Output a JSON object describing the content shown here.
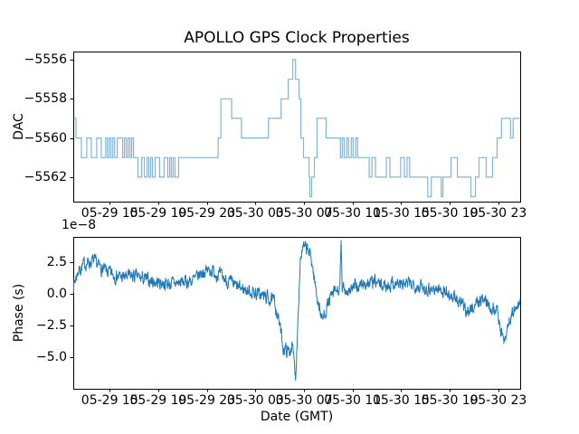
{
  "figure": {
    "title": "APOLLO GPS Clock Properties",
    "background": "#ffffff",
    "accent_color": "#1f77b4"
  },
  "chart_data": [
    {
      "type": "line",
      "subplot": "top",
      "style": "step-post",
      "ylabel": "DAC",
      "color": "#1f77b4",
      "line_alpha": 0.55,
      "grid": false,
      "legend": "none",
      "x_unit": "hours since 05-29 12:00 GMT",
      "xlim_hours": [
        0,
        36.8
      ],
      "ylim": [
        -5563.3,
        -5555.6
      ],
      "x_tick_hours": [
        3,
        7,
        11,
        15,
        19,
        23,
        27,
        31,
        35
      ],
      "x_tick_labels": [
        "05-29 15",
        "05-29 19",
        "05-29 23",
        "05-30 03",
        "05-30 07",
        "05-30 11",
        "05-30 15",
        "05-30 19",
        "05-30 23"
      ],
      "y_tick_values": [
        -5556,
        -5558,
        -5560,
        -5562
      ],
      "y_tick_labels": [
        "−5556",
        "−5558",
        "−5560",
        "−5562"
      ],
      "series": [
        {
          "name": "dac-steps",
          "points_hour_value": [
            [
              0.0,
              -5559
            ],
            [
              0.22,
              -5560
            ],
            [
              0.67,
              -5561
            ],
            [
              1.11,
              -5560
            ],
            [
              1.48,
              -5561
            ],
            [
              1.93,
              -5560
            ],
            [
              2.3,
              -5561
            ],
            [
              2.67,
              -5560
            ],
            [
              2.81,
              -5561
            ],
            [
              2.96,
              -5560
            ],
            [
              3.11,
              -5561
            ],
            [
              3.26,
              -5560
            ],
            [
              3.41,
              -5561
            ],
            [
              3.63,
              -5560
            ],
            [
              4.07,
              -5561
            ],
            [
              4.22,
              -5560
            ],
            [
              4.37,
              -5561
            ],
            [
              4.52,
              -5560
            ],
            [
              4.67,
              -5561
            ],
            [
              4.81,
              -5560
            ],
            [
              4.96,
              -5561
            ],
            [
              5.33,
              -5562
            ],
            [
              5.63,
              -5561
            ],
            [
              5.85,
              -5562
            ],
            [
              6.07,
              -5561
            ],
            [
              6.22,
              -5562
            ],
            [
              6.37,
              -5561
            ],
            [
              6.52,
              -5562
            ],
            [
              6.74,
              -5561
            ],
            [
              7.11,
              -5562
            ],
            [
              7.48,
              -5561
            ],
            [
              7.78,
              -5562
            ],
            [
              7.93,
              -5561
            ],
            [
              8.07,
              -5562
            ],
            [
              8.22,
              -5561
            ],
            [
              8.37,
              -5562
            ],
            [
              8.67,
              -5561
            ],
            [
              11.93,
              -5560
            ],
            [
              12.15,
              -5558
            ],
            [
              13.04,
              -5559
            ],
            [
              13.85,
              -5560
            ],
            [
              16.07,
              -5559
            ],
            [
              17.11,
              -5558
            ],
            [
              17.7,
              -5557
            ],
            [
              18.07,
              -5556
            ],
            [
              18.3,
              -5557
            ],
            [
              18.59,
              -5558
            ],
            [
              18.74,
              -5560
            ],
            [
              18.96,
              -5561
            ],
            [
              19.41,
              -5562
            ],
            [
              19.48,
              -5563
            ],
            [
              19.63,
              -5562
            ],
            [
              19.85,
              -5561
            ],
            [
              20.07,
              -5559
            ],
            [
              20.81,
              -5560
            ],
            [
              22.0,
              -5561
            ],
            [
              22.15,
              -5560
            ],
            [
              22.3,
              -5561
            ],
            [
              22.52,
              -5560
            ],
            [
              22.67,
              -5561
            ],
            [
              22.89,
              -5560
            ],
            [
              23.04,
              -5561
            ],
            [
              23.26,
              -5560
            ],
            [
              23.41,
              -5561
            ],
            [
              24.37,
              -5562
            ],
            [
              24.59,
              -5561
            ],
            [
              24.89,
              -5562
            ],
            [
              25.78,
              -5561
            ],
            [
              26.07,
              -5562
            ],
            [
              26.96,
              -5561
            ],
            [
              27.26,
              -5562
            ],
            [
              27.48,
              -5561
            ],
            [
              27.7,
              -5562
            ],
            [
              29.19,
              -5563
            ],
            [
              29.48,
              -5562
            ],
            [
              30.3,
              -5563
            ],
            [
              30.44,
              -5562
            ],
            [
              31.11,
              -5561
            ],
            [
              31.63,
              -5562
            ],
            [
              32.74,
              -5563
            ],
            [
              33.11,
              -5562
            ],
            [
              33.41,
              -5561
            ],
            [
              34.0,
              -5562
            ],
            [
              34.52,
              -5561
            ],
            [
              34.89,
              -5560
            ],
            [
              35.26,
              -5559
            ],
            [
              36.0,
              -5560
            ],
            [
              36.22,
              -5559
            ],
            [
              36.8,
              -5559
            ]
          ]
        }
      ]
    },
    {
      "type": "line",
      "subplot": "bottom",
      "style": "noisy-line",
      "ylabel": "Phase (s)",
      "xlabel": "Date (GMT)",
      "offset_text": "1e−8",
      "color": "#1f77b4",
      "grid": false,
      "legend": "none",
      "x_unit": "hours since 05-29 12:00 GMT",
      "xlim_hours": [
        0,
        36.8
      ],
      "ylim_1e8": [
        -7.5,
        4.5
      ],
      "x_tick_hours": [
        3,
        7,
        11,
        15,
        19,
        23,
        27,
        31,
        35
      ],
      "x_tick_labels": [
        "05-29 15",
        "05-29 19",
        "05-29 23",
        "05-30 03",
        "05-30 07",
        "05-30 11",
        "05-30 15",
        "05-30 19",
        "05-30 23"
      ],
      "y_tick_values": [
        2.5,
        0.0,
        -2.5,
        -5.0
      ],
      "y_tick_labels": [
        "2.5",
        "0.0",
        "−2.5",
        "−5.0"
      ],
      "trend_keypoints_hour_value_1e8": [
        [
          0.0,
          0.6
        ],
        [
          0.4,
          1.8
        ],
        [
          1.0,
          2.4
        ],
        [
          1.6,
          2.6
        ],
        [
          2.2,
          2.1
        ],
        [
          3.0,
          1.6
        ],
        [
          4.0,
          1.3
        ],
        [
          5.0,
          1.4
        ],
        [
          6.0,
          1.1
        ],
        [
          7.0,
          0.9
        ],
        [
          8.0,
          0.8
        ],
        [
          9.0,
          0.9
        ],
        [
          10.0,
          1.1
        ],
        [
          10.6,
          1.7
        ],
        [
          11.3,
          1.9
        ],
        [
          12.0,
          1.5
        ],
        [
          12.7,
          1.0
        ],
        [
          13.5,
          0.5
        ],
        [
          14.3,
          0.3
        ],
        [
          15.2,
          0.0
        ],
        [
          16.0,
          -0.3
        ],
        [
          16.6,
          -0.7
        ],
        [
          17.0,
          -2.5
        ],
        [
          17.3,
          -4.3
        ],
        [
          17.8,
          -4.6
        ],
        [
          18.0,
          -4.0
        ],
        [
          18.15,
          -5.0
        ],
        [
          18.3,
          -6.6
        ],
        [
          18.42,
          -4.0
        ],
        [
          18.55,
          -0.5
        ],
        [
          18.7,
          2.8
        ],
        [
          18.9,
          3.6
        ],
        [
          19.3,
          3.5
        ],
        [
          19.6,
          2.8
        ],
        [
          19.9,
          0.8
        ],
        [
          20.2,
          -0.8
        ],
        [
          20.5,
          -2.1
        ],
        [
          20.8,
          -1.2
        ],
        [
          21.2,
          -0.3
        ],
        [
          21.6,
          0.2
        ],
        [
          21.95,
          0.3
        ],
        [
          22.05,
          3.9
        ],
        [
          22.15,
          0.4
        ],
        [
          22.6,
          0.3
        ],
        [
          23.2,
          0.5
        ],
        [
          24.0,
          0.8
        ],
        [
          24.8,
          0.9
        ],
        [
          25.6,
          0.6
        ],
        [
          26.4,
          0.9
        ],
        [
          27.2,
          0.7
        ],
        [
          28.0,
          0.8
        ],
        [
          28.8,
          0.5
        ],
        [
          29.6,
          0.4
        ],
        [
          30.4,
          0.3
        ],
        [
          31.2,
          -0.2
        ],
        [
          31.9,
          -0.8
        ],
        [
          32.6,
          -1.4
        ],
        [
          33.2,
          -0.7
        ],
        [
          33.8,
          -0.4
        ],
        [
          34.4,
          -1.0
        ],
        [
          34.9,
          -1.3
        ],
        [
          35.2,
          -2.8
        ],
        [
          35.45,
          -3.8
        ],
        [
          35.7,
          -2.8
        ],
        [
          36.0,
          -1.8
        ],
        [
          36.3,
          -1.4
        ],
        [
          36.6,
          -1.1
        ],
        [
          36.8,
          -0.6
        ]
      ],
      "noise_model": {
        "seed": 7,
        "ar_coefficient": 0.5,
        "innovation_amplitude": 0.9,
        "sample_step_hours": 0.025
      }
    }
  ]
}
